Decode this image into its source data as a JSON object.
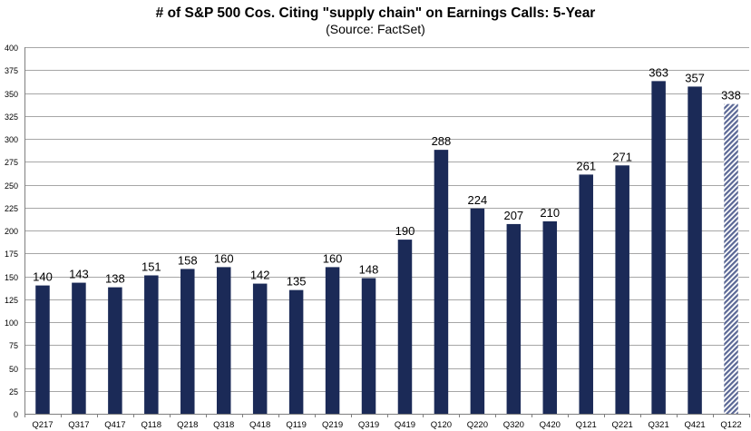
{
  "chart_data": {
    "type": "bar",
    "title": "# of S&P 500 Cos. Citing \"supply chain\" on Earnings Calls: 5-Year",
    "subtitle": "(Source: FactSet)",
    "xlabel": "",
    "ylabel": "",
    "ylim": [
      0,
      400
    ],
    "ytick_step": 25,
    "grid": true,
    "legend": "none",
    "categories": [
      "Q217",
      "Q317",
      "Q417",
      "Q118",
      "Q218",
      "Q318",
      "Q418",
      "Q119",
      "Q219",
      "Q319",
      "Q419",
      "Q120",
      "Q220",
      "Q320",
      "Q420",
      "Q121",
      "Q221",
      "Q321",
      "Q421",
      "Q122"
    ],
    "values": [
      140,
      143,
      138,
      151,
      158,
      160,
      142,
      135,
      160,
      148,
      190,
      288,
      224,
      207,
      210,
      261,
      271,
      363,
      357,
      338
    ],
    "bar_color": "#1b2a57",
    "hatched_categories": [
      "Q122"
    ],
    "hatch_color": "#5a6795"
  }
}
